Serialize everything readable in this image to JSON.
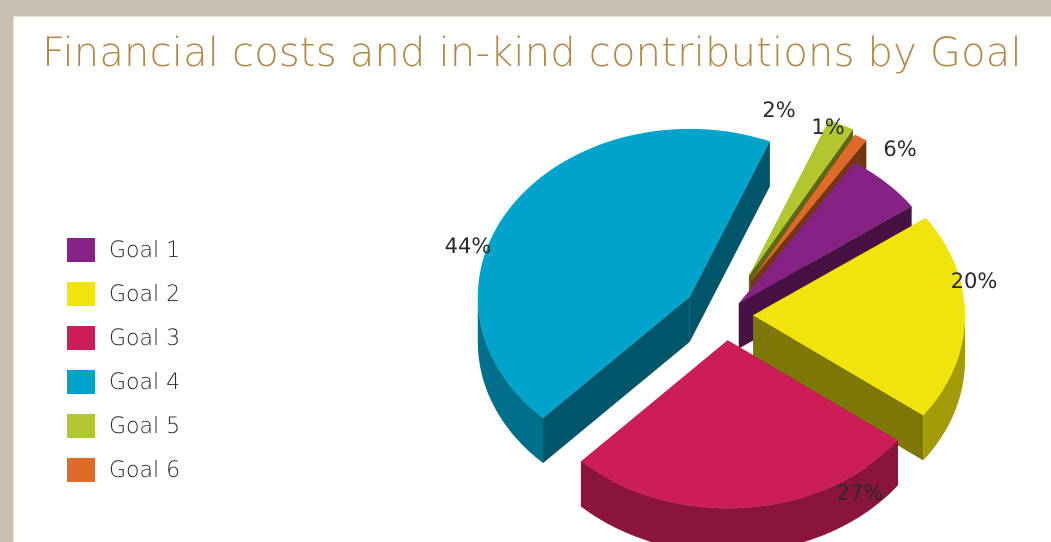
{
  "chart_data": {
    "type": "pie",
    "title": "Financial costs and in-kind contributions by Goal",
    "legend_position": "left",
    "slices": [
      {
        "label": "Goal 1",
        "value": 6,
        "display": "6%",
        "color": "#862283"
      },
      {
        "label": "Goal 2",
        "value": 20,
        "display": "20%",
        "color": "#f1e40d"
      },
      {
        "label": "Goal 3",
        "value": 27,
        "display": "27%",
        "color": "#cc1e56"
      },
      {
        "label": "Goal 4",
        "value": 44,
        "display": "44%",
        "color": "#00a4cb"
      },
      {
        "label": "Goal 5",
        "value": 2,
        "display": "2%",
        "color": "#b2c72f"
      },
      {
        "label": "Goal 6",
        "value": 1,
        "display": "1%",
        "color": "#e06a2a"
      }
    ]
  }
}
